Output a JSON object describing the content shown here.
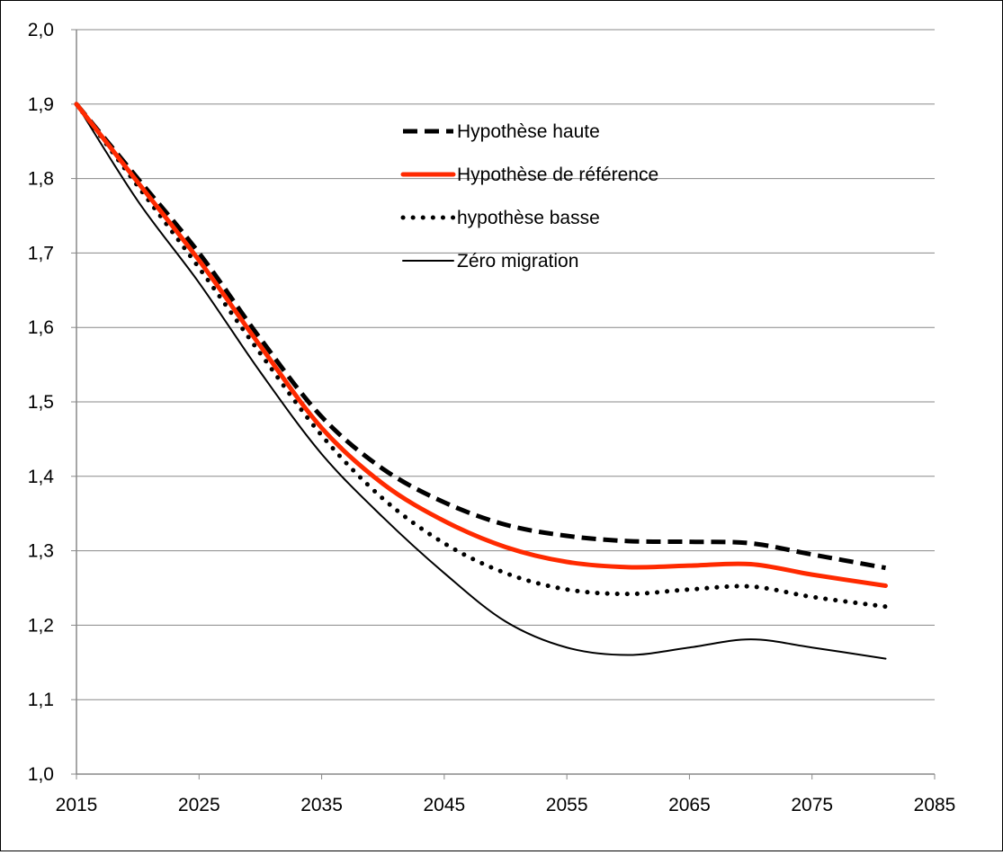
{
  "chart_data": {
    "type": "line",
    "title": "",
    "xlabel": "",
    "ylabel": "",
    "xlim": [
      2015,
      2085
    ],
    "ylim": [
      1.0,
      2.0
    ],
    "grid": "horizontal",
    "legend_position": "top-center",
    "x_ticks": [
      "2015",
      "2025",
      "2035",
      "2045",
      "2055",
      "2065",
      "2075",
      "2085"
    ],
    "y_ticks": [
      "1,0",
      "1,1",
      "1,2",
      "1,3",
      "1,4",
      "1,5",
      "1,6",
      "1,7",
      "1,8",
      "1,9",
      "2,0"
    ],
    "series": [
      {
        "name": "Hypothèse haute",
        "color": "#000000",
        "style": "dashed",
        "points": [
          [
            2015,
            1.9
          ],
          [
            2020,
            1.8
          ],
          [
            2025,
            1.7
          ],
          [
            2030,
            1.585
          ],
          [
            2035,
            1.48
          ],
          [
            2040,
            1.41
          ],
          [
            2045,
            1.365
          ],
          [
            2050,
            1.335
          ],
          [
            2055,
            1.32
          ],
          [
            2060,
            1.313
          ],
          [
            2065,
            1.312
          ],
          [
            2070,
            1.31
          ],
          [
            2075,
            1.295
          ],
          [
            2081,
            1.277
          ]
        ]
      },
      {
        "name": "Hypothèse de référence",
        "color": "#ff2a00",
        "style": "solid-thick",
        "points": [
          [
            2015,
            1.9
          ],
          [
            2020,
            1.795
          ],
          [
            2025,
            1.69
          ],
          [
            2030,
            1.575
          ],
          [
            2035,
            1.465
          ],
          [
            2040,
            1.39
          ],
          [
            2045,
            1.34
          ],
          [
            2050,
            1.305
          ],
          [
            2055,
            1.285
          ],
          [
            2060,
            1.278
          ],
          [
            2065,
            1.28
          ],
          [
            2070,
            1.282
          ],
          [
            2075,
            1.268
          ],
          [
            2081,
            1.253
          ]
        ]
      },
      {
        "name": "hypothèse basse",
        "color": "#000000",
        "style": "dotted",
        "points": [
          [
            2015,
            1.9
          ],
          [
            2020,
            1.79
          ],
          [
            2025,
            1.68
          ],
          [
            2030,
            1.565
          ],
          [
            2035,
            1.455
          ],
          [
            2040,
            1.37
          ],
          [
            2045,
            1.31
          ],
          [
            2050,
            1.27
          ],
          [
            2055,
            1.248
          ],
          [
            2060,
            1.242
          ],
          [
            2065,
            1.248
          ],
          [
            2070,
            1.252
          ],
          [
            2075,
            1.238
          ],
          [
            2081,
            1.225
          ]
        ]
      },
      {
        "name": "Zéro migration",
        "color": "#000000",
        "style": "solid-thin",
        "points": [
          [
            2015,
            1.9
          ],
          [
            2020,
            1.77
          ],
          [
            2025,
            1.66
          ],
          [
            2030,
            1.54
          ],
          [
            2035,
            1.43
          ],
          [
            2040,
            1.345
          ],
          [
            2045,
            1.27
          ],
          [
            2050,
            1.205
          ],
          [
            2055,
            1.17
          ],
          [
            2060,
            1.16
          ],
          [
            2065,
            1.17
          ],
          [
            2070,
            1.181
          ],
          [
            2075,
            1.17
          ],
          [
            2081,
            1.155
          ]
        ]
      }
    ]
  }
}
